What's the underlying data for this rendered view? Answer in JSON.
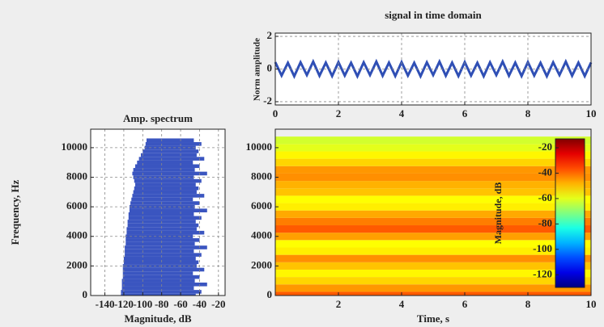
{
  "chart_data": [
    {
      "type": "line",
      "title": "signal in time domain",
      "y_label": "Norm amplitude",
      "x": [
        0,
        0.2,
        0.4,
        0.6,
        0.8,
        1,
        1.2,
        1.4,
        1.6,
        1.8,
        2,
        2.2,
        2.4,
        2.6,
        2.8,
        3,
        3.2,
        3.4,
        3.6,
        3.8,
        4,
        4.2,
        4.4,
        4.6,
        4.8,
        5,
        5.2,
        5.4,
        5.6,
        5.8,
        6,
        6.2,
        6.4,
        6.6,
        6.8,
        7,
        7.2,
        7.4,
        7.6,
        7.8,
        8,
        8.2,
        8.4,
        8.6,
        8.8,
        9,
        9.2,
        9.4,
        9.6,
        9.8,
        10
      ],
      "series": [
        {
          "color": "#2f4fb5",
          "values": [
            0.42,
            -0.4,
            0.38,
            -0.44,
            0.41,
            -0.37,
            0.45,
            -0.41,
            0.39,
            -0.43,
            0.42,
            -0.4,
            0.38,
            -0.44,
            0.41,
            -0.37,
            0.45,
            -0.41,
            0.39,
            -0.43,
            0.42,
            -0.4,
            0.38,
            -0.44,
            0.41,
            -0.37,
            0.45,
            -0.41,
            0.39,
            -0.43,
            0.42,
            -0.4,
            0.38,
            -0.44,
            0.41,
            -0.37,
            0.45,
            -0.41,
            0.39,
            -0.43,
            0.42,
            -0.4,
            0.38,
            -0.44,
            0.41,
            -0.37,
            0.45,
            -0.41,
            0.39,
            -0.43,
            0.4
          ]
        }
      ],
      "xlim": [
        0,
        10
      ],
      "ylim": [
        -2.2,
        2.2
      ],
      "xticks": [
        0,
        2,
        4,
        6,
        8,
        10
      ],
      "yticks": [
        -2,
        0,
        2
      ],
      "grid": true
    },
    {
      "type": "area",
      "orientation": "horizontal",
      "title": "Amp. spectrum",
      "x_label": "Magnitude, dB",
      "y_label": "Frequency, Hz",
      "y": [
        0,
        250,
        500,
        750,
        1000,
        1250,
        1500,
        1750,
        2000,
        2250,
        2500,
        2750,
        3000,
        3250,
        3500,
        3750,
        4000,
        4250,
        4500,
        4750,
        5000,
        5250,
        5500,
        5750,
        6000,
        6250,
        6500,
        6750,
        7000,
        7250,
        7500,
        7750,
        8000,
        8250,
        8500,
        8750,
        9000,
        9250,
        9500,
        9750,
        10000,
        10250,
        10500
      ],
      "series": [
        {
          "color": "#3a55c0",
          "values": [
            -123,
            -123,
            -122,
            -122,
            -122,
            -121,
            -121,
            -121,
            -121,
            -120,
            -120,
            -119,
            -119,
            -119,
            -118,
            -118,
            -118,
            -117,
            -117,
            -116,
            -116,
            -115,
            -115,
            -114,
            -114,
            -113,
            -112,
            -111,
            -110,
            -109,
            -108,
            -109,
            -110,
            -111,
            -110,
            -108,
            -106,
            -104,
            -102,
            -100,
            -98,
            -97,
            -96
          ]
        },
        {
          "color": "#3a55c0",
          "values": [
            -44,
            -38,
            -46,
            -32,
            -45,
            -40,
            -47,
            -35,
            -43,
            -41,
            -44,
            -38,
            -46,
            -32,
            -45,
            -40,
            -47,
            -35,
            -43,
            -41,
            -44,
            -38,
            -46,
            -32,
            -45,
            -40,
            -47,
            -35,
            -43,
            -41,
            -44,
            -38,
            -46,
            -32,
            -45,
            -40,
            -47,
            -35,
            -43,
            -41,
            -44,
            -38,
            -46
          ]
        }
      ],
      "xlim": [
        -155,
        -13
      ],
      "ylim": [
        0,
        11250
      ],
      "xticks": [
        -140,
        -120,
        -100,
        -80,
        -60,
        -40,
        -20
      ],
      "yticks": [
        0,
        2000,
        4000,
        6000,
        8000,
        10000
      ],
      "grid": true
    },
    {
      "type": "heatmap",
      "x_label": "Time, s",
      "colorbar_label": "Magnitude, dB",
      "y": [
        0,
        500,
        1000,
        1500,
        2000,
        2500,
        3000,
        3500,
        4000,
        4500,
        5000,
        5500,
        6000,
        6500,
        7000,
        7500,
        8000,
        8500,
        9000,
        9500,
        10000,
        10500
      ],
      "values": [
        -38,
        -45,
        -52,
        -56,
        -50,
        -44,
        -55,
        -57,
        -46,
        -38,
        -42,
        -47,
        -55,
        -57,
        -50,
        -48,
        -44,
        -45,
        -52,
        -56,
        -60,
        -62
      ],
      "xlim": [
        0,
        10
      ],
      "ylim": [
        0,
        11250
      ],
      "xticks": [
        2,
        4,
        6,
        8,
        10
      ],
      "yticks": [
        0,
        2000,
        4000,
        6000,
        8000,
        10000
      ],
      "colormap": "jet",
      "clim": [
        -130,
        -13
      ],
      "cticks": [
        -120,
        -100,
        -80,
        -60,
        -40,
        -20
      ]
    }
  ]
}
